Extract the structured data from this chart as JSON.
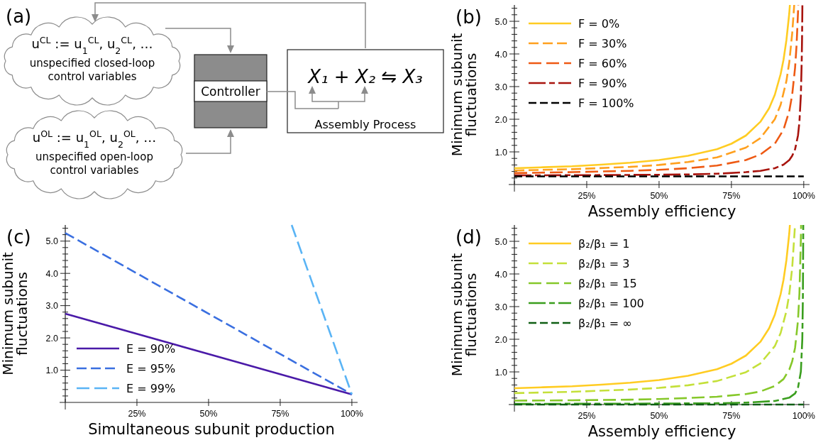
{
  "chart_data": [
    {
      "type": "other",
      "title": "(a)",
      "annotations": [
        "u$^{CL}$ := u$_{1}$$^{CL}$, u$_{2}$$^{CL}$, …",
        "unspecified closed-loop control variables",
        "u$^{OL}$ := u$_{1}$$^{OL}$, u$_{2}$$^{OL}$, …",
        "unspecified open-loop control variables",
        "Controller",
        "X₁ + X₂ ⇋ X₃",
        "Assembly Process"
      ]
    },
    {
      "type": "line",
      "title": "(b)",
      "xlabel": "Assembly efficiency",
      "ylabel": "Minimum subunit fluctuations",
      "xlim": [
        0,
        102
      ],
      "ylim": [
        0,
        5.5
      ],
      "xticks": [
        {
          "value": 0,
          "label": null
        },
        {
          "value": 25,
          "label": "25%"
        },
        {
          "value": 50,
          "label": "50%"
        },
        {
          "value": 75,
          "label": "75%"
        },
        {
          "value": 100,
          "label": "100%"
        }
      ],
      "yticks": [
        {
          "value": 0.2,
          "label": null
        },
        {
          "value": 0.4,
          "label": null
        },
        {
          "value": 0.6,
          "label": null
        },
        {
          "value": 0.8,
          "label": null
        },
        {
          "value": 1,
          "label": "1.0"
        },
        {
          "value": 1.2,
          "label": null
        },
        {
          "value": 1.4,
          "label": null
        },
        {
          "value": 1.6,
          "label": null
        },
        {
          "value": 1.8,
          "label": null
        },
        {
          "value": 2,
          "label": "2.0"
        },
        {
          "value": 2.2,
          "label": null
        },
        {
          "value": 2.4,
          "label": null
        },
        {
          "value": 2.6,
          "label": null
        },
        {
          "value": 2.8,
          "label": null
        },
        {
          "value": 3,
          "label": "3.0"
        },
        {
          "value": 3.2,
          "label": null
        },
        {
          "value": 3.4,
          "label": null
        },
        {
          "value": 3.6,
          "label": null
        },
        {
          "value": 3.8,
          "label": null
        },
        {
          "value": 4,
          "label": "4.0"
        },
        {
          "value": 4.2,
          "label": null
        },
        {
          "value": 4.4,
          "label": null
        },
        {
          "value": 4.6,
          "label": null
        },
        {
          "value": 4.8,
          "label": null
        },
        {
          "value": 5,
          "label": "5.0"
        },
        {
          "value": 5.2,
          "label": null
        },
        {
          "value": 5.4,
          "label": null
        }
      ],
      "legend": "top left",
      "series": [
        {
          "name": "F = 0%",
          "color": "#ffcc22",
          "line_style": "solid",
          "x": [
            0,
            10,
            20,
            30,
            40,
            50,
            60,
            70,
            75,
            80,
            85,
            88,
            90,
            92,
            93,
            94,
            95,
            95.2
          ],
          "values": [
            0.5,
            0.53,
            0.56,
            0.61,
            0.67,
            0.75,
            0.88,
            1.08,
            1.25,
            1.5,
            1.92,
            2.33,
            2.75,
            3.38,
            3.82,
            4.42,
            5.25,
            5.5
          ]
        },
        {
          "name": "F = 30%",
          "color": "#ffa01e",
          "line_style": "dashed",
          "x": [
            0,
            20,
            40,
            50,
            60,
            70,
            80,
            85,
            90,
            92,
            94,
            95,
            96,
            96.7
          ],
          "values": [
            0.43,
            0.47,
            0.54,
            0.6,
            0.69,
            0.83,
            1.13,
            1.42,
            2.0,
            2.44,
            3.17,
            3.75,
            4.63,
            5.5
          ]
        },
        {
          "name": "F = 60%",
          "color": "#ee5a14",
          "line_style": "dashed",
          "x": [
            0,
            20,
            40,
            50,
            60,
            70,
            80,
            85,
            90,
            93,
            95,
            96,
            97,
            97.5,
            98,
            98.1
          ],
          "values": [
            0.35,
            0.38,
            0.42,
            0.45,
            0.5,
            0.58,
            0.75,
            0.92,
            1.25,
            1.68,
            2.25,
            2.75,
            3.58,
            4.25,
            5.25,
            5.5
          ]
        },
        {
          "name": "F = 90%",
          "color": "#a8140e",
          "line_style": "dashed",
          "x": [
            0,
            30,
            50,
            60,
            70,
            80,
            85,
            90,
            93,
            95,
            96,
            97,
            98,
            98.5,
            99,
            99.3,
            99.4,
            99.5,
            99.52
          ],
          "values": [
            0.28,
            0.29,
            0.3,
            0.31,
            0.33,
            0.38,
            0.42,
            0.5,
            0.61,
            0.75,
            0.88,
            1.08,
            1.5,
            1.92,
            2.75,
            3.82,
            4.42,
            5.25,
            5.5
          ]
        },
        {
          "name": "F = 100%",
          "color": "#000000",
          "line_style": "dashed",
          "x": [
            0,
            100
          ],
          "values": [
            0.25,
            0.25
          ]
        }
      ]
    },
    {
      "type": "line",
      "title": "(c)",
      "xlabel": "Simultaneous subunit production",
      "ylabel": "Minimum subunit fluctuations",
      "xlim": [
        0,
        102
      ],
      "ylim": [
        0,
        5.5
      ],
      "xticks": [
        {
          "value": 0,
          "label": null
        },
        {
          "value": 25,
          "label": "25%"
        },
        {
          "value": 50,
          "label": "50%"
        },
        {
          "value": 75,
          "label": "75%"
        },
        {
          "value": 100,
          "label": "100%"
        }
      ],
      "yticks": [
        {
          "value": 0.2,
          "label": null
        },
        {
          "value": 0.4,
          "label": null
        },
        {
          "value": 0.6,
          "label": null
        },
        {
          "value": 0.8,
          "label": null
        },
        {
          "value": 1,
          "label": "1.0"
        },
        {
          "value": 1.2,
          "label": null
        },
        {
          "value": 1.4,
          "label": null
        },
        {
          "value": 1.6,
          "label": null
        },
        {
          "value": 1.8,
          "label": null
        },
        {
          "value": 2,
          "label": "2.0"
        },
        {
          "value": 2.2,
          "label": null
        },
        {
          "value": 2.4,
          "label": null
        },
        {
          "value": 2.6,
          "label": null
        },
        {
          "value": 2.8,
          "label": null
        },
        {
          "value": 3,
          "label": "3.0"
        },
        {
          "value": 3.2,
          "label": null
        },
        {
          "value": 3.4,
          "label": null
        },
        {
          "value": 3.6,
          "label": null
        },
        {
          "value": 3.8,
          "label": null
        },
        {
          "value": 4,
          "label": "4.0"
        },
        {
          "value": 4.2,
          "label": null
        },
        {
          "value": 4.4,
          "label": null
        },
        {
          "value": 4.6,
          "label": null
        },
        {
          "value": 4.8,
          "label": null
        },
        {
          "value": 5,
          "label": "5.0"
        },
        {
          "value": 5.2,
          "label": null
        },
        {
          "value": 5.4,
          "label": null
        }
      ],
      "legend": "bottom left",
      "series": [
        {
          "name": "E = 90%",
          "color": "#4a1aa8",
          "line_style": "solid",
          "x": [
            0,
            100
          ],
          "values": [
            2.75,
            0.25
          ]
        },
        {
          "name": "E = 95%",
          "color": "#3a6fe0",
          "line_style": "dashed",
          "x": [
            0,
            100
          ],
          "values": [
            5.25,
            0.25
          ]
        },
        {
          "name": "E = 99%",
          "color": "#5ab4f5",
          "line_style": "dashed",
          "x": [
            79,
            100
          ],
          "values": [
            5.5,
            0.25
          ]
        }
      ]
    },
    {
      "type": "line",
      "title": "(d)",
      "xlabel": "Assembly efficiency",
      "ylabel": "Minimum subunit fluctuations",
      "xlim": [
        0,
        102
      ],
      "ylim": [
        0,
        5.5
      ],
      "xticks": [
        {
          "value": 0,
          "label": null
        },
        {
          "value": 25,
          "label": "25%"
        },
        {
          "value": 50,
          "label": "50%"
        },
        {
          "value": 75,
          "label": "75%"
        },
        {
          "value": 100,
          "label": "100%"
        }
      ],
      "yticks": [
        {
          "value": 0.2,
          "label": null
        },
        {
          "value": 0.4,
          "label": null
        },
        {
          "value": 0.6,
          "label": null
        },
        {
          "value": 0.8,
          "label": null
        },
        {
          "value": 1,
          "label": "1.0"
        },
        {
          "value": 1.2,
          "label": null
        },
        {
          "value": 1.4,
          "label": null
        },
        {
          "value": 1.6,
          "label": null
        },
        {
          "value": 1.8,
          "label": null
        },
        {
          "value": 2,
          "label": "2.0"
        },
        {
          "value": 2.2,
          "label": null
        },
        {
          "value": 2.4,
          "label": null
        },
        {
          "value": 2.6,
          "label": null
        },
        {
          "value": 2.8,
          "label": null
        },
        {
          "value": 3,
          "label": "3.0"
        },
        {
          "value": 3.2,
          "label": null
        },
        {
          "value": 3.4,
          "label": null
        },
        {
          "value": 3.6,
          "label": null
        },
        {
          "value": 3.8,
          "label": null
        },
        {
          "value": 4,
          "label": "4.0"
        },
        {
          "value": 4.2,
          "label": null
        },
        {
          "value": 4.4,
          "label": null
        },
        {
          "value": 4.6,
          "label": null
        },
        {
          "value": 4.8,
          "label": null
        },
        {
          "value": 5,
          "label": "5.0"
        },
        {
          "value": 5.2,
          "label": null
        },
        {
          "value": 5.4,
          "label": null
        }
      ],
      "legend": "top left",
      "series": [
        {
          "name": "β₂/β₁ = 1",
          "color": "#ffcc22",
          "line_style": "solid",
          "x": [
            0,
            10,
            20,
            30,
            40,
            50,
            60,
            70,
            75,
            80,
            85,
            88,
            90,
            92,
            93,
            94,
            95,
            95.2
          ],
          "values": [
            0.5,
            0.53,
            0.56,
            0.61,
            0.67,
            0.75,
            0.88,
            1.08,
            1.25,
            1.5,
            1.92,
            2.33,
            2.75,
            3.38,
            3.82,
            4.42,
            5.25,
            5.5
          ]
        },
        {
          "name": "β₂/β₁ = 3",
          "color": "#c4e03a",
          "line_style": "dashed",
          "x": [
            0,
            20,
            40,
            50,
            60,
            70,
            80,
            85,
            90,
            92,
            94,
            95,
            96,
            96.98
          ],
          "values": [
            0.35,
            0.39,
            0.46,
            0.51,
            0.59,
            0.72,
            0.99,
            1.26,
            1.79,
            2.19,
            2.86,
            3.39,
            4.19,
            5.49
          ]
        },
        {
          "name": "β₂/β₁ = 15",
          "color": "#86c82a",
          "line_style": "dashed",
          "x": [
            0,
            20,
            40,
            50,
            60,
            70,
            80,
            85,
            90,
            93,
            95,
            96,
            97,
            98,
            98.5,
            99,
            99.08
          ],
          "values": [
            0.12,
            0.13,
            0.15,
            0.17,
            0.2,
            0.24,
            0.32,
            0.4,
            0.57,
            0.78,
            1.07,
            1.32,
            1.74,
            2.57,
            3.4,
            5.07,
            5.5
          ]
        },
        {
          "name": "β₂/β₁ = 100",
          "color": "#3a9e1e",
          "line_style": "dashed",
          "x": [
            0,
            50,
            70,
            80,
            90,
            95,
            97,
            98,
            99,
            99.5,
            99.7,
            99.8,
            99.82
          ],
          "values": [
            0.02,
            0.03,
            0.04,
            0.06,
            0.11,
            0.21,
            0.34,
            0.51,
            1.01,
            2.01,
            3.34,
            5.01,
            5.5
          ]
        },
        {
          "name": "β₂/β₁ = ∞",
          "color": "#0f5e14",
          "line_style": "dashed",
          "x": [
            0,
            100
          ],
          "values": [
            0,
            0
          ]
        }
      ]
    }
  ]
}
